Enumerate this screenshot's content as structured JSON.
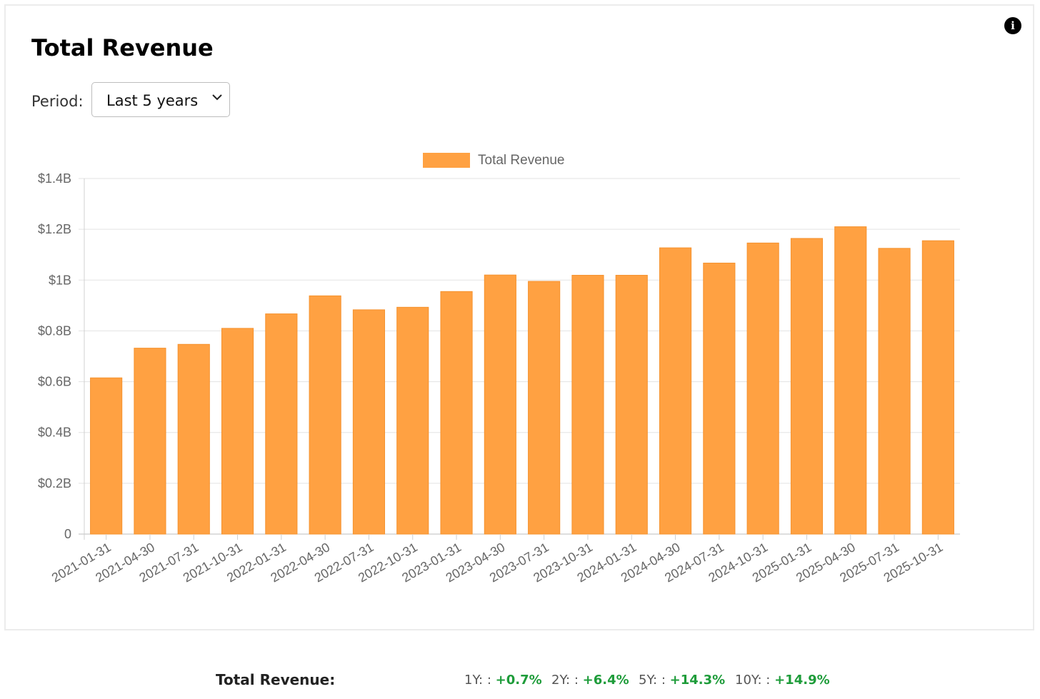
{
  "card": {
    "title": "Total Revenue"
  },
  "period": {
    "label": "Period:",
    "selected": "Last 5 years"
  },
  "chart_data": {
    "type": "bar",
    "title": "",
    "xlabel": "",
    "ylabel": "",
    "legend": {
      "position": "top",
      "entries": [
        "Total Revenue"
      ]
    },
    "categories": [
      "2021-01-31",
      "2021-04-30",
      "2021-07-31",
      "2021-10-31",
      "2022-01-31",
      "2022-04-30",
      "2022-07-31",
      "2022-10-31",
      "2023-01-31",
      "2023-04-30",
      "2023-07-31",
      "2023-10-31",
      "2024-01-31",
      "2024-04-30",
      "2024-07-31",
      "2024-10-31",
      "2025-01-31",
      "2025-04-30",
      "2025-07-31",
      "2025-10-31"
    ],
    "series": [
      {
        "name": "Total Revenue",
        "color": "#ffa142",
        "values": [
          0.615,
          0.732,
          0.747,
          0.81,
          0.867,
          0.938,
          0.883,
          0.893,
          0.955,
          1.02,
          0.995,
          1.019,
          1.019,
          1.127,
          1.067,
          1.146,
          1.164,
          1.21,
          1.125,
          1.155
        ]
      }
    ],
    "y_unit": "billions USD",
    "ylim": [
      0,
      1.4
    ],
    "yticks": [
      0,
      0.2,
      0.4,
      0.6,
      0.8,
      1.0,
      1.2,
      1.4
    ],
    "ytick_labels": [
      "0",
      "$0.2B",
      "$0.4B",
      "$0.6B",
      "$0.8B",
      "$1B",
      "$1.2B",
      "$1.4B"
    ],
    "grid": true
  },
  "growth": {
    "title": "Total Revenue:",
    "items": [
      {
        "label": "1Y: :",
        "value": "+0.7%"
      },
      {
        "label": "2Y: :",
        "value": "+6.4%"
      },
      {
        "label": "5Y: :",
        "value": "+14.3%"
      },
      {
        "label": "10Y: :",
        "value": "+14.9%"
      }
    ]
  }
}
